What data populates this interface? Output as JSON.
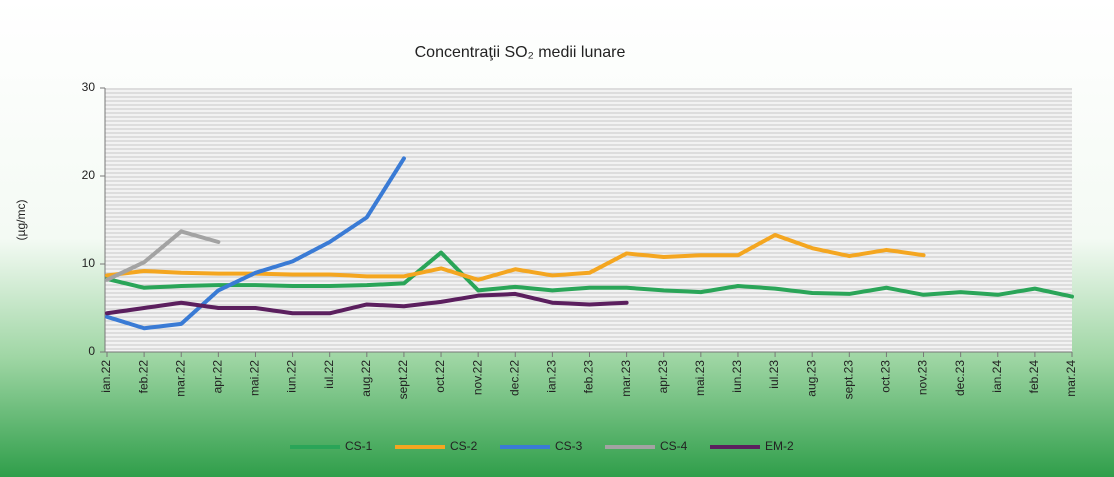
{
  "chart_data": {
    "type": "line",
    "title": "Concentraţii SO₂ medii lunare",
    "y_label": "(µg/mc)",
    "categories": [
      "ian.22",
      "feb.22",
      "mar.22",
      "apr.22",
      "mai.22",
      "iun.22",
      "iul.22",
      "aug.22",
      "sept.22",
      "oct.22",
      "nov.22",
      "dec.22",
      "ian.23",
      "feb.23",
      "mar.23",
      "apr.23",
      "mai.23",
      "iun.23",
      "iul.23",
      "aug.23",
      "sept.23",
      "oct.23",
      "nov.23",
      "dec.23",
      "ian.24",
      "feb.24",
      "mar.24"
    ],
    "series": [
      {
        "name": "CS-1",
        "color": "#2aa558",
        "values": [
          8.3,
          7.3,
          7.5,
          7.6,
          7.6,
          7.5,
          7.5,
          7.6,
          7.8,
          11.3,
          7.0,
          7.4,
          7.0,
          7.3,
          7.3,
          7.0,
          6.8,
          7.5,
          7.2,
          6.7,
          6.6,
          7.3,
          6.5,
          6.8,
          6.5,
          7.2,
          6.3
        ]
      },
      {
        "name": "CS-2",
        "color": "#f4a620",
        "values": [
          8.7,
          9.2,
          9.0,
          8.9,
          8.9,
          8.8,
          8.8,
          8.6,
          8.6,
          9.5,
          8.2,
          9.4,
          8.7,
          9.0,
          11.2,
          10.8,
          11.0,
          11.0,
          13.3,
          11.8,
          10.9,
          11.6,
          11.0,
          null,
          null,
          null,
          null
        ]
      },
      {
        "name": "CS-3",
        "color": "#3a7bd5",
        "values": [
          4.0,
          2.7,
          3.2,
          7.0,
          9.0,
          10.3,
          12.5,
          15.3,
          22.0,
          null,
          null,
          null,
          null,
          null,
          null,
          null,
          null,
          null,
          null,
          null,
          null,
          null,
          null,
          null,
          null,
          null,
          null
        ]
      },
      {
        "name": "CS-4",
        "color": "#a3a3a3",
        "values": [
          8.2,
          10.2,
          13.7,
          12.5,
          null,
          null,
          null,
          null,
          null,
          null,
          null,
          null,
          null,
          null,
          null,
          null,
          null,
          null,
          null,
          null,
          null,
          null,
          null,
          null,
          null,
          null,
          null
        ]
      },
      {
        "name": "EM-2",
        "color": "#5b1f5e",
        "values": [
          4.4,
          5.0,
          5.6,
          5.0,
          5.0,
          4.4,
          4.4,
          5.4,
          5.2,
          5.7,
          6.4,
          6.6,
          5.6,
          5.4,
          5.6,
          null,
          null,
          null,
          null,
          null,
          null,
          null,
          null,
          null,
          null,
          null,
          null
        ]
      }
    ],
    "ylim": [
      0,
      30
    ],
    "yticks": [
      0,
      10,
      20,
      30
    ],
    "grid": false,
    "legend": "bottom"
  }
}
